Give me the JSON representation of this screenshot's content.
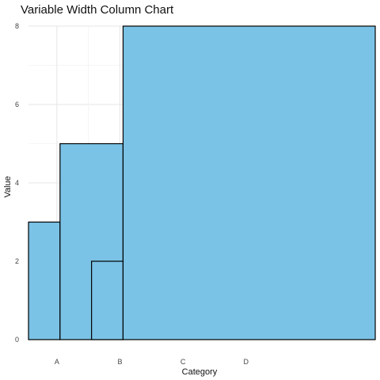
{
  "chart_data": {
    "type": "bar",
    "title": "Variable Width Column Chart",
    "xlabel": "Category",
    "ylabel": "Value",
    "categories": [
      "A",
      "B",
      "C",
      "D"
    ],
    "x_ticks": [
      1,
      2,
      3,
      4
    ],
    "xlim": [
      0.55,
      6.05
    ],
    "ylim": [
      0,
      8
    ],
    "y_ticks": [
      0,
      2,
      4,
      6,
      8
    ],
    "bars": [
      {
        "category": "A",
        "value": 3,
        "x_start": 0.55,
        "x_end": 1.05
      },
      {
        "category": "B",
        "value": 5,
        "x_start": 1.05,
        "x_end": 2.05
      },
      {
        "category": "C",
        "value": 2,
        "x_start": 1.55,
        "x_end": 2.05
      },
      {
        "category": "D",
        "value": 8,
        "x_start": 2.05,
        "x_end": 6.05
      }
    ],
    "fill_color": "#7bc3e6",
    "stroke_color": "#000000",
    "grid": true,
    "legend": "none"
  }
}
